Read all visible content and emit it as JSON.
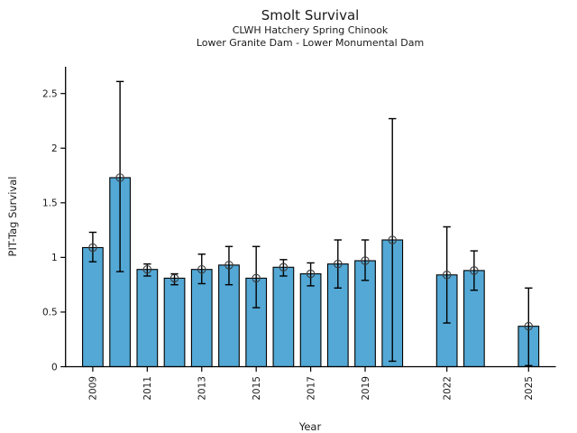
{
  "figure": {
    "title": "Smolt Survival",
    "subtitle_line1": "CLWH Hatchery Spring Chinook",
    "subtitle_line2": "Lower Granite Dam - Lower Monumental Dam"
  },
  "chart_data": {
    "type": "bar",
    "title": "Smolt Survival",
    "subtitle": [
      "CLWH Hatchery Spring Chinook",
      "Lower Granite Dam - Lower Monumental Dam"
    ],
    "xlabel": "Year",
    "ylabel": "PIT-Tag Survival",
    "x": [
      2009,
      2010,
      2011,
      2012,
      2013,
      2014,
      2015,
      2016,
      2017,
      2018,
      2019,
      2020,
      2022,
      2023,
      2025
    ],
    "values": [
      1.09,
      1.73,
      0.89,
      0.81,
      0.89,
      0.93,
      0.81,
      0.91,
      0.85,
      0.94,
      0.97,
      1.16,
      0.84,
      0.88,
      0.37
    ],
    "error_low": [
      0.96,
      0.87,
      0.83,
      0.75,
      0.76,
      0.75,
      0.54,
      0.83,
      0.74,
      0.72,
      0.79,
      0.05,
      0.4,
      0.7,
      0.01
    ],
    "error_high": [
      1.23,
      2.61,
      0.94,
      0.85,
      1.03,
      1.1,
      1.1,
      0.98,
      0.95,
      1.16,
      1.16,
      2.27,
      1.28,
      1.06,
      0.72
    ],
    "missing_years": [
      2021,
      2024
    ],
    "x_tick_labels": [
      "2009",
      "2011",
      "2013",
      "2015",
      "2017",
      "2019",
      "2022",
      "2025"
    ],
    "y_ticks": [
      0,
      0.5,
      1,
      1.5,
      2,
      2.5
    ],
    "y_tick_labels": [
      "0",
      "0.5",
      "1",
      "1.5",
      "2",
      "2.5"
    ],
    "xlim": [
      2008,
      2026
    ],
    "ylim": [
      0,
      2.745
    ],
    "bar_width_years": 0.75,
    "bar_color": "#53a8d5",
    "bar_edge_color": "#000000",
    "error_color": "#000000",
    "marker": "open-circle",
    "marker_color": "#3a3a3a",
    "grid": false,
    "legend": null
  }
}
